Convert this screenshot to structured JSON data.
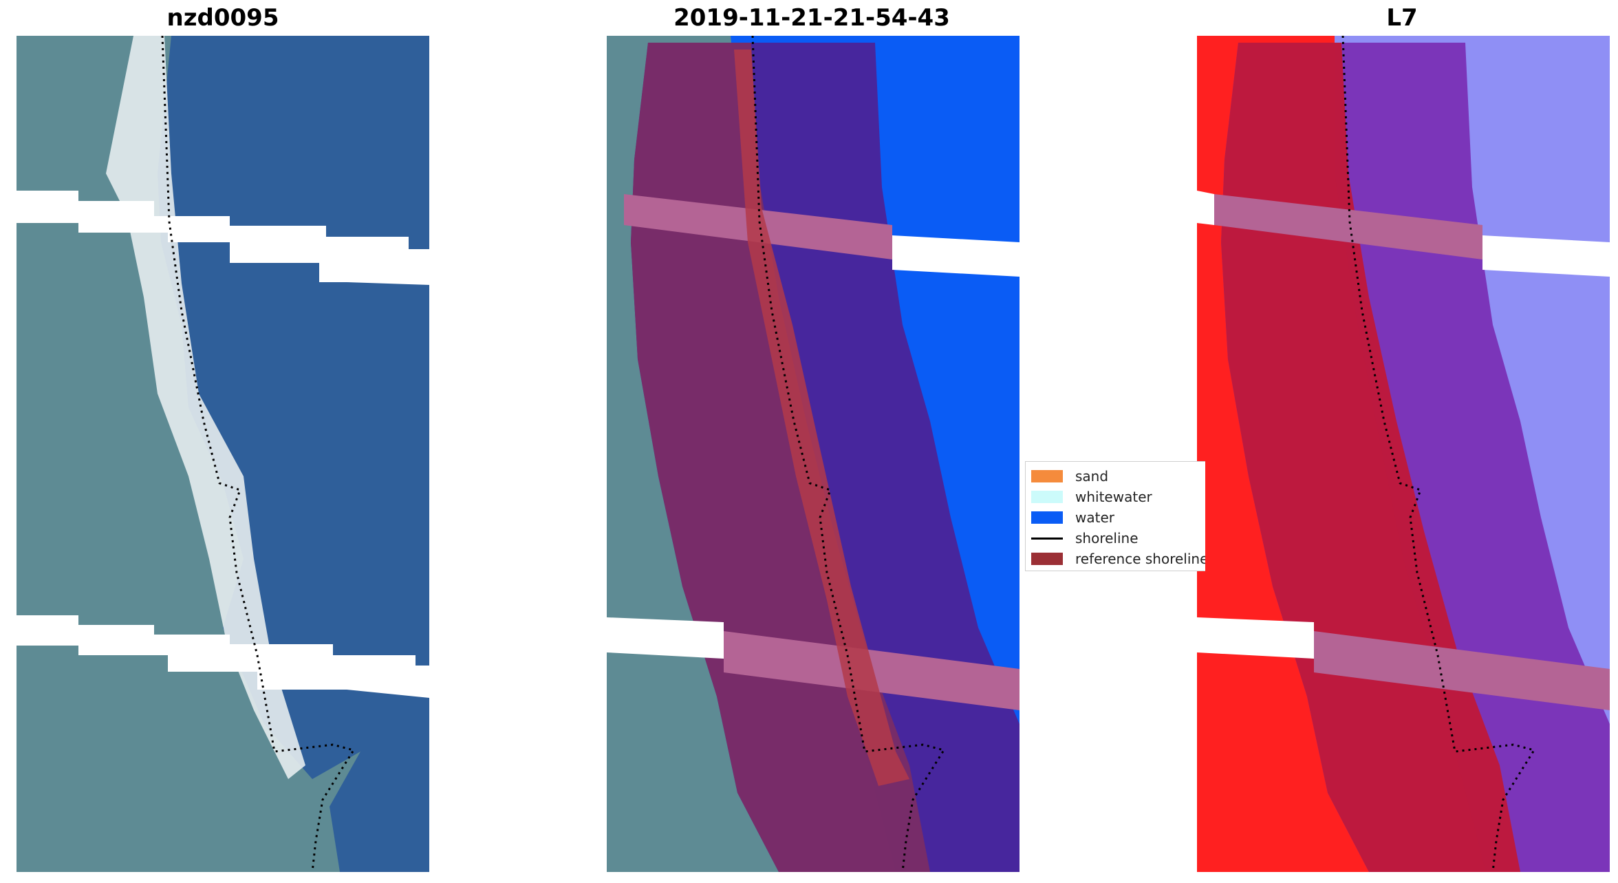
{
  "panels": [
    {
      "title": "nzd0095"
    },
    {
      "title": "2019-11-21-21-54-43"
    },
    {
      "title": "L7"
    }
  ],
  "legend": {
    "items": [
      {
        "label": "sand",
        "color": "#f58b3c",
        "kind": "patch"
      },
      {
        "label": "whitewater",
        "color": "#ccfbfb",
        "kind": "patch"
      },
      {
        "label": "water",
        "color": "#0a5cf5",
        "kind": "patch"
      },
      {
        "label": "shoreline",
        "color": "#000000",
        "kind": "line"
      },
      {
        "label": "reference shoreline",
        "color": "#9b2f35",
        "kind": "patch"
      }
    ]
  },
  "colors": {
    "land": "#5e8b94",
    "sea": "#2f5f9a",
    "beach": "#e6ecee",
    "classified_water": "#0a5cf5",
    "reference_buffer_rgb": "#7a2c66",
    "reference_buffer_sea": "#4b2398",
    "buffer_stripe": "#b46495",
    "ndwi_land": "#ff2020",
    "ndwi_sea": "#8f8ff5",
    "ndwi_buffer_land": "#c01838",
    "ndwi_buffer_sea": "#7a30b5"
  }
}
